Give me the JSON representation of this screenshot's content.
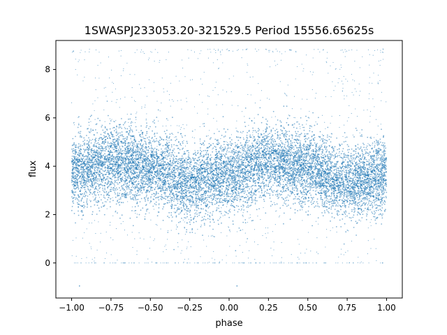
{
  "chart_data": {
    "type": "scatter",
    "title": "1SWASPJ233053.20-321529.5 Period 15556.65625s",
    "xlabel": "phase",
    "ylabel": "flux",
    "xlim": [
      -1.1,
      1.1
    ],
    "ylim": [
      -1.45,
      9.2
    ],
    "x_ticks": [
      {
        "value": -1.0,
        "label": "−1.00"
      },
      {
        "value": -0.75,
        "label": "−0.75"
      },
      {
        "value": -0.5,
        "label": "−0.50"
      },
      {
        "value": -0.25,
        "label": "−0.25"
      },
      {
        "value": 0.0,
        "label": "0.00"
      },
      {
        "value": 0.25,
        "label": "0.25"
      },
      {
        "value": 0.5,
        "label": "0.50"
      },
      {
        "value": 0.75,
        "label": "0.75"
      },
      {
        "value": 1.0,
        "label": "1.00"
      }
    ],
    "y_ticks": [
      {
        "value": 0,
        "label": "0"
      },
      {
        "value": 2,
        "label": "2"
      },
      {
        "value": 4,
        "label": "4"
      },
      {
        "value": 6,
        "label": "6"
      },
      {
        "value": 8,
        "label": "8"
      }
    ],
    "grid": false,
    "legend": "none",
    "point_color": "#1f77b4",
    "x_range_of_data": [
      -1.0,
      1.0
    ],
    "y_clip": [
      0,
      8.85
    ],
    "light_curve_profile": {
      "phase": [
        -1.0,
        -0.75,
        -0.5,
        -0.25,
        0.0,
        0.25,
        0.5,
        0.75,
        1.0
      ],
      "mean_flux": [
        3.7,
        4.15,
        3.95,
        3.3,
        3.6,
        4.2,
        3.95,
        3.3,
        3.6
      ],
      "spread": 0.75
    },
    "outliers": [
      {
        "x": -0.95,
        "y": -0.95
      },
      {
        "x": 0.05,
        "y": -0.95
      }
    ]
  }
}
